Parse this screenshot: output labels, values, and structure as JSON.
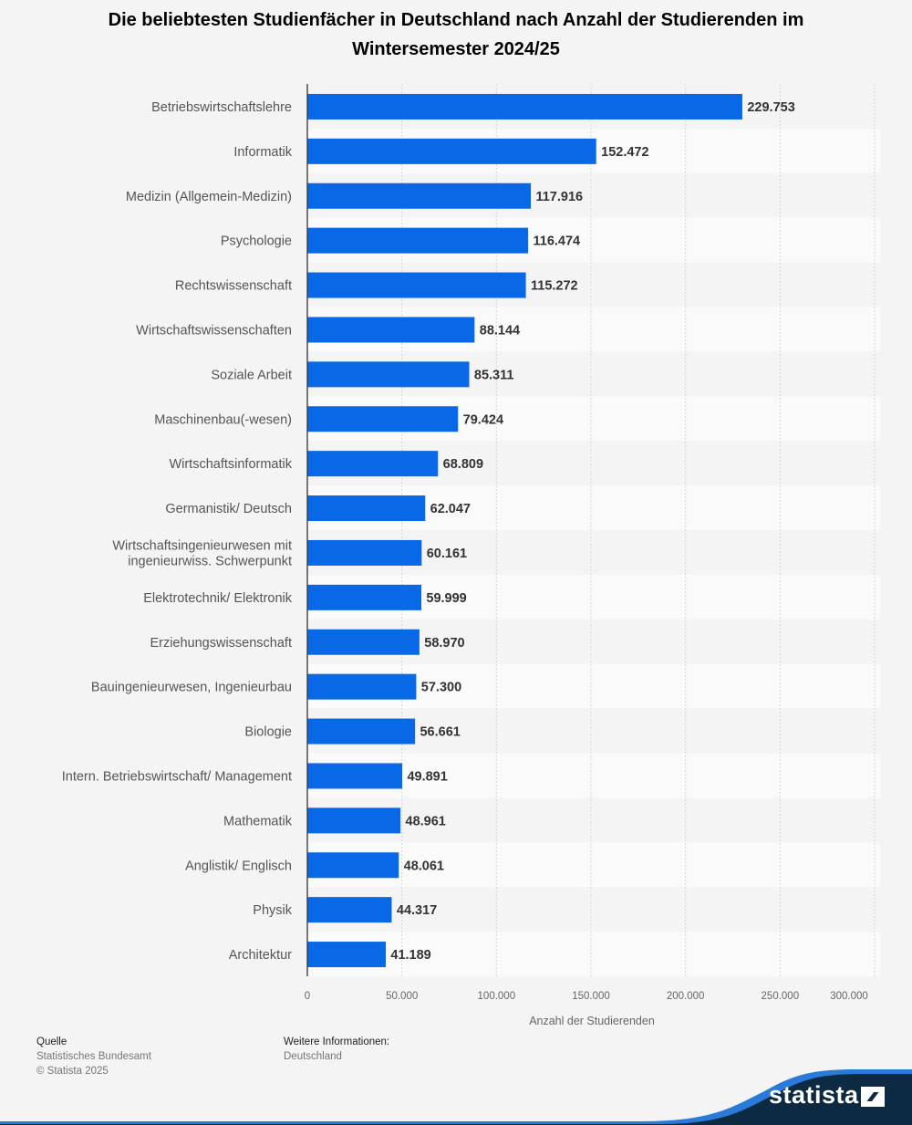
{
  "title": "Die beliebtesten Studienfächer in Deutschland nach Anzahl der Studierenden im Wintersemester 2024/25",
  "chart_data": {
    "type": "bar",
    "orientation": "horizontal",
    "title": "Die beliebtesten Studienfächer in Deutschland nach Anzahl der Studierenden im Wintersemester 2024/25",
    "xlabel": "Anzahl der Studierenden",
    "ylabel": "",
    "xlim": [
      0,
      300000
    ],
    "xticks": [
      0,
      50000,
      100000,
      150000,
      200000,
      250000,
      300000
    ],
    "xtick_labels": [
      "0",
      "50.000",
      "100.000",
      "150.000",
      "200.000",
      "250.000",
      "300.000"
    ],
    "grid": true,
    "bar_color": "#0968e5",
    "categories": [
      "Betriebswirtschaftslehre",
      "Informatik",
      "Medizin (Allgemein-Medizin)",
      "Psychologie",
      "Rechtswissenschaft",
      "Wirtschaftswissenschaften",
      "Soziale Arbeit",
      "Maschinenbau(-wesen)",
      "Wirtschaftsinformatik",
      "Germanistik/ Deutsch",
      "Wirtschaftsingenieurwesen mit ingenieurwiss. Schwerpunkt",
      "Elektrotechnik/ Elektronik",
      "Erziehungswissenschaft",
      "Bauingenieurwesen, Ingenieurbau",
      "Biologie",
      "Intern. Betriebswirtschaft/ Management",
      "Mathematik",
      "Anglistik/ Englisch",
      "Physik",
      "Architektur"
    ],
    "category_lines": [
      [
        "Betriebswirtschaftslehre"
      ],
      [
        "Informatik"
      ],
      [
        "Medizin (Allgemein-Medizin)"
      ],
      [
        "Psychologie"
      ],
      [
        "Rechtswissenschaft"
      ],
      [
        "Wirtschaftswissenschaften"
      ],
      [
        "Soziale Arbeit"
      ],
      [
        "Maschinenbau(-wesen)"
      ],
      [
        "Wirtschaftsinformatik"
      ],
      [
        "Germanistik/ Deutsch"
      ],
      [
        "Wirtschaftsingenieurwesen mit",
        "ingenieurwiss. Schwerpunkt"
      ],
      [
        "Elektrotechnik/ Elektronik"
      ],
      [
        "Erziehungswissenschaft"
      ],
      [
        "Bauingenieurwesen, Ingenieurbau"
      ],
      [
        "Biologie"
      ],
      [
        "Intern. Betriebswirtschaft/ Management"
      ],
      [
        "Mathematik"
      ],
      [
        "Anglistik/ Englisch"
      ],
      [
        "Physik"
      ],
      [
        "Architektur"
      ]
    ],
    "values": [
      229753,
      152472,
      117916,
      116474,
      115272,
      88144,
      85311,
      79424,
      68809,
      62047,
      60161,
      59999,
      58970,
      57300,
      56661,
      49891,
      48961,
      48061,
      44317,
      41189
    ],
    "value_labels": [
      "229.753",
      "152.472",
      "117.916",
      "116.474",
      "115.272",
      "88.144",
      "85.311",
      "79.424",
      "68.809",
      "62.047",
      "60.161",
      "59.999",
      "58.970",
      "57.300",
      "56.661",
      "49.891",
      "48.961",
      "48.061",
      "44.317",
      "41.189"
    ]
  },
  "footer": {
    "source_heading": "Quelle",
    "source": "Statistisches Bundesamt",
    "copyright": "© Statista 2025",
    "more_info_heading": "Weitere Informationen:",
    "more_info": "Deutschland"
  },
  "brand": {
    "name": "statista",
    "dark_color": "#0d2a43",
    "accent_color": "#2a7ad9"
  }
}
